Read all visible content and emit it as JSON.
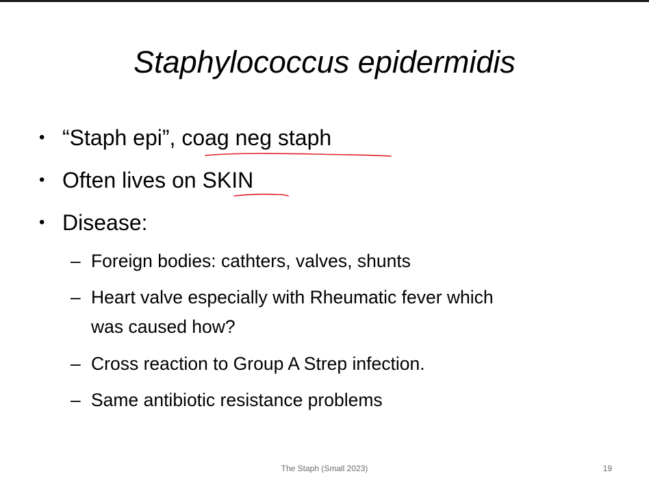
{
  "slide": {
    "title": "Staphylococcus epidermidis",
    "bullets": [
      {
        "marker": "•",
        "text": "“Staph epi”, coag neg staph"
      },
      {
        "marker": "•",
        "text": "Often lives on SKIN"
      },
      {
        "marker": "•",
        "text": "Disease:"
      }
    ],
    "sub_bullets": [
      {
        "marker": "–",
        "lines": [
          "Foreign bodies: cathters, valves, shunts"
        ]
      },
      {
        "marker": "–",
        "lines": [
          "Heart valve especially with Rheumatic fever which",
          "was caused how?"
        ]
      },
      {
        "marker": "–",
        "lines": [
          "Cross reaction to Group A Strep infection."
        ]
      },
      {
        "marker": "–",
        "lines": [
          "Same antibiotic resistance problems"
        ]
      }
    ],
    "footer": "The Staph (Small 2023)",
    "page_number": "19"
  },
  "annotations": {
    "ink_color": "#e0202a",
    "underlined_phrases": [
      "coag neg staph",
      "SKIN"
    ]
  }
}
